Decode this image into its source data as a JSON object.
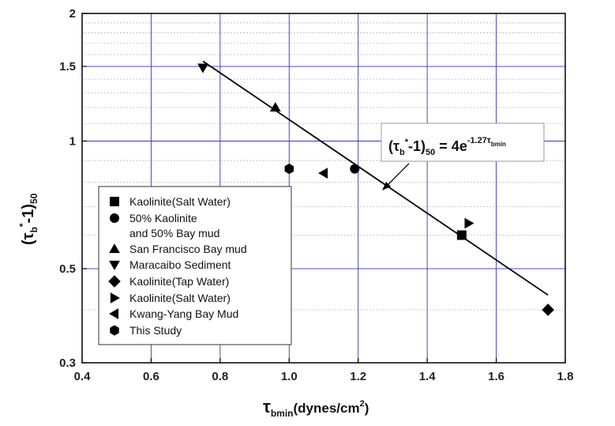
{
  "chart_data": {
    "type": "scatter",
    "xlabel": {
      "main": "τ",
      "sub": "bmin",
      "rest": "(dynes/cm",
      "sup": "2",
      "end": ")"
    },
    "ylabel": {
      "open": "(τ",
      "sub": "b",
      "sup": "*",
      "mid": "-1)",
      "sub2": "50"
    },
    "xlim": [
      0.4,
      1.8
    ],
    "ylim": [
      0.3,
      2
    ],
    "yscale": "log",
    "grid": true,
    "xticks": [
      0.4,
      0.6,
      0.8,
      1.0,
      1.2,
      1.4,
      1.6,
      1.8
    ],
    "xtick_labels": [
      "0.4",
      "0.6",
      "0.8",
      "1.0",
      "1.2",
      "1.4",
      "1.6",
      "1.8"
    ],
    "yticks": [
      0.3,
      0.5,
      1,
      1.5,
      2
    ],
    "ytick_labels": [
      "0.3",
      "0.5",
      "1",
      "1.5",
      "2"
    ],
    "legend_position": "lower-left",
    "series": [
      {
        "name": "Kaolinite(Salt Water)",
        "marker": "square",
        "points": [
          [
            1.5,
            0.6
          ]
        ]
      },
      {
        "name": "50% Kaolinite",
        "name2": "and 50% Bay mud",
        "marker": "circle",
        "points": [
          [
            1.19,
            0.86
          ]
        ]
      },
      {
        "name": "San Francisco Bay mud",
        "marker": "triangle-up",
        "points": [
          [
            0.96,
            1.2
          ]
        ]
      },
      {
        "name": "Maracaibo Sediment",
        "marker": "triangle-down",
        "points": [
          [
            0.75,
            1.49
          ]
        ]
      },
      {
        "name": "Kaolinite(Tap Water)",
        "marker": "diamond",
        "points": [
          [
            1.75,
            0.4
          ]
        ]
      },
      {
        "name": "Kaolinite(Salt Water)",
        "marker": "triangle-right",
        "points": [
          [
            1.52,
            0.64
          ]
        ]
      },
      {
        "name": "Kwang-Yang Bay Mud",
        "marker": "triangle-left",
        "points": [
          [
            1.1,
            0.84
          ]
        ]
      },
      {
        "name": "This Study",
        "marker": "hexagon",
        "points": [
          [
            1.0,
            0.86
          ]
        ]
      }
    ],
    "fit_line": {
      "coefficient": 4,
      "exponent": -1.27,
      "x_range": [
        0.75,
        1.75
      ]
    },
    "annotation": {
      "lhs_open": "(τ",
      "lhs_sub": "b",
      "lhs_sup": "*",
      "lhs_mid": "-1)",
      "lhs_sub2": "50",
      "rhs": " = 4e",
      "exp_sup": "-1.27τ",
      "exp_sub": "bmin"
    }
  }
}
